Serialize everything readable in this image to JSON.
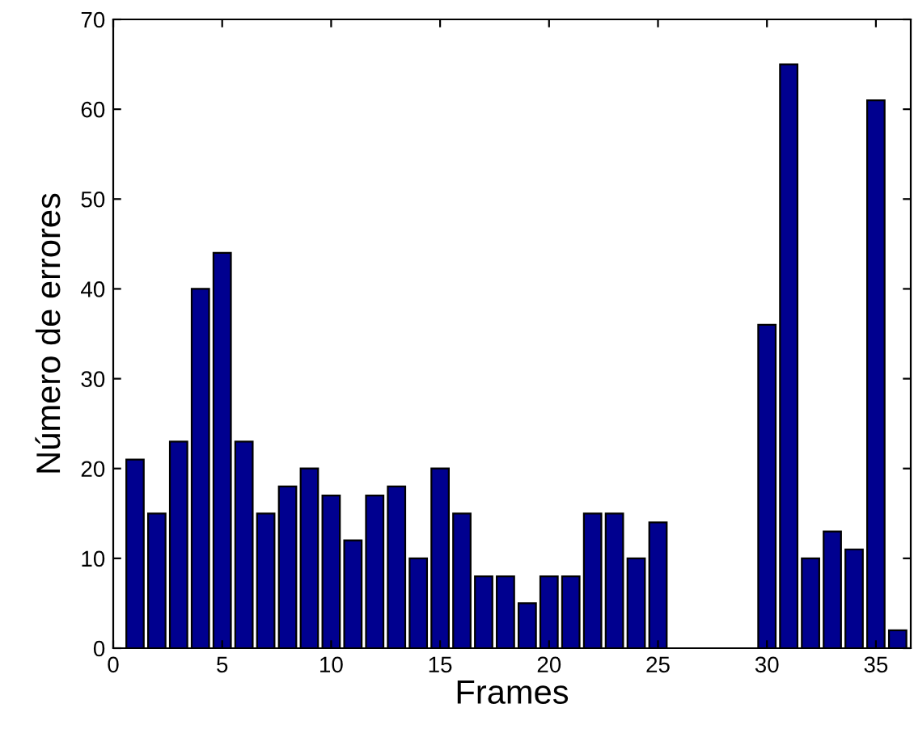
{
  "chart_data": {
    "type": "bar",
    "xlabel": "Frames",
    "ylabel": "Número de errores",
    "x": [
      1,
      2,
      3,
      4,
      5,
      6,
      7,
      8,
      9,
      10,
      11,
      12,
      13,
      14,
      15,
      16,
      17,
      18,
      19,
      20,
      21,
      22,
      23,
      24,
      25,
      26,
      27,
      28,
      29,
      30,
      31,
      32,
      33,
      34,
      35,
      36
    ],
    "values": [
      21,
      15,
      23,
      40,
      44,
      23,
      15,
      18,
      20,
      17,
      12,
      17,
      18,
      10,
      20,
      15,
      8,
      8,
      5,
      8,
      8,
      15,
      15,
      10,
      14,
      null,
      null,
      null,
      null,
      36,
      65,
      10,
      13,
      11,
      61,
      2
    ],
    "color": "#00008f",
    "xlim": [
      0,
      36.6
    ],
    "xticks": [
      0,
      5,
      10,
      15,
      20,
      25,
      30,
      35
    ],
    "ylim": [
      0,
      70
    ],
    "yticks": [
      0,
      10,
      20,
      30,
      40,
      50,
      60,
      70
    ],
    "grid": false,
    "legend": false
  }
}
